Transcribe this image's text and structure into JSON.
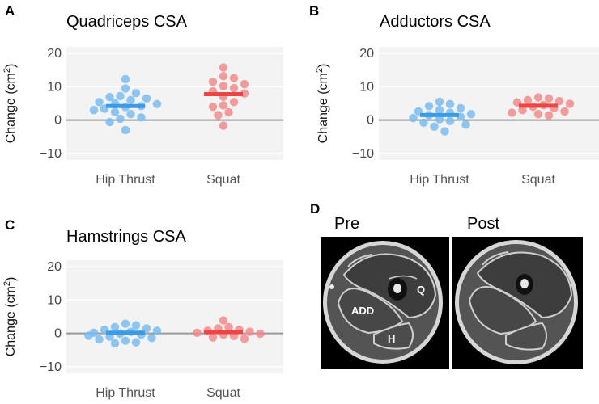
{
  "colors": {
    "hip_thrust": "#3A9BE8",
    "hip_thrust_point": "#79BCF0",
    "squat": "#EE4444",
    "squat_point": "#F28A8A",
    "zero_line": "#9a9a9a",
    "grid": "#e9e9e9",
    "plot_bg": "#f3f3f3"
  },
  "chart_data": [
    {
      "panel": "A",
      "type": "scatter",
      "title": "Quadriceps CSA",
      "ylabel": "Change (cm²)",
      "ylim": [
        -12,
        22
      ],
      "yticks": [
        -10,
        0,
        10,
        20
      ],
      "categories": [
        "Hip Thrust",
        "Squat"
      ],
      "series": [
        {
          "name": "Hip Thrust",
          "mean": 4.2,
          "points": [
            12.3,
            9.5,
            8.1,
            7.2,
            6.9,
            6.5,
            6.0,
            5.4,
            5.0,
            4.8,
            4.2,
            3.9,
            3.4,
            3.0,
            2.4,
            1.8,
            0.8,
            0.4,
            -0.6,
            -3.0
          ]
        },
        {
          "name": "Squat",
          "mean": 7.8,
          "points": [
            15.8,
            13.2,
            12.6,
            11.5,
            10.8,
            10.2,
            9.6,
            8.6,
            8.0,
            7.0,
            5.4,
            4.4,
            4.0,
            2.3,
            1.5,
            -1.7
          ]
        }
      ]
    },
    {
      "panel": "B",
      "type": "scatter",
      "title": "Adductors CSA",
      "ylabel": "Change (cm²)",
      "ylim": [
        -12,
        22
      ],
      "yticks": [
        -10,
        0,
        10,
        20
      ],
      "categories": [
        "Hip Thrust",
        "Squat"
      ],
      "series": [
        {
          "name": "Hip Thrust",
          "mean": 1.5,
          "points": [
            5.5,
            4.8,
            4.2,
            3.6,
            3.0,
            2.6,
            2.2,
            1.8,
            1.5,
            1.0,
            0.6,
            0.2,
            -0.3,
            -0.8,
            -1.4,
            -2.0,
            -3.4
          ]
        },
        {
          "name": "Squat",
          "mean": 4.3,
          "points": [
            6.8,
            6.5,
            6.0,
            5.7,
            5.3,
            4.9,
            4.5,
            4.0,
            3.6,
            3.0,
            2.6,
            2.2,
            1.8,
            1.4
          ]
        }
      ]
    },
    {
      "panel": "C",
      "type": "scatter",
      "title": "Hamstrings CSA",
      "ylabel": "Change (cm²)",
      "ylim": [
        -12,
        22
      ],
      "yticks": [
        -10,
        0,
        10,
        20
      ],
      "categories": [
        "Hip Thrust",
        "Squat"
      ],
      "series": [
        {
          "name": "Hip Thrust",
          "mean": 0.2,
          "points": [
            2.9,
            2.4,
            1.9,
            1.5,
            1.1,
            0.8,
            0.5,
            0.2,
            -0.1,
            -0.4,
            -0.7,
            -1.0,
            -1.4,
            -1.8,
            -2.2,
            -2.7,
            -3.0
          ]
        },
        {
          "name": "Squat",
          "mean": 0.4,
          "points": [
            3.9,
            1.9,
            1.5,
            1.1,
            0.8,
            0.5,
            0.2,
            -0.1,
            -0.4,
            -0.8,
            -1.2,
            -1.6
          ]
        }
      ]
    }
  ],
  "mri": {
    "panel": "D",
    "pre_label": "Pre",
    "post_label": "Post",
    "labels": {
      "quadriceps": "Q",
      "adductors": "ADD",
      "hamstrings": "H"
    }
  }
}
